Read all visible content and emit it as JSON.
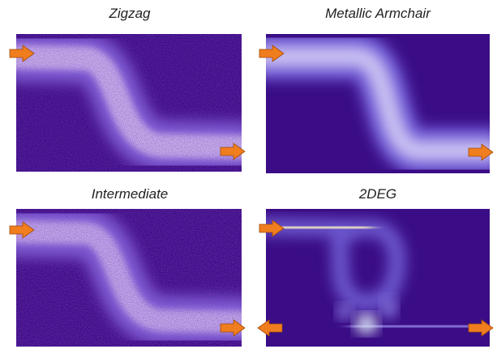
{
  "panels": [
    {
      "title": "Zigzag"
    },
    {
      "title": "Metallic Armchair"
    },
    {
      "title": "Intermediate"
    },
    {
      "title": "2DEG"
    }
  ]
}
